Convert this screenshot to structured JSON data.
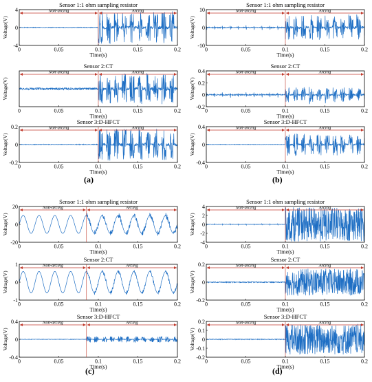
{
  "figure": {
    "panels": [
      {
        "label": "(a)",
        "subplots": [
          {
            "title": "Sensor 1:1 ohm sampling resistor",
            "ylabel": "Voltage(V)",
            "xlabel": "Time(s)",
            "xticks": [
              "0",
              "0.05",
              "0.1",
              "0.15",
              "0.2"
            ],
            "yticks": [
              "4",
              "0",
              "-4"
            ],
            "ylim": [
              -4,
              4
            ],
            "region_labels": [
              "Non-arcing",
              "Arcing"
            ]
          },
          {
            "title": "Sensor 2:CT",
            "ylabel": "Voltage(V)",
            "xlabel": "Time(s)",
            "xticks": [
              "0",
              "0.05",
              "0.1",
              "0.15",
              "0.2"
            ],
            "yticks": [],
            "ylim": [
              -1,
              1
            ],
            "region_labels": [
              "Non-arcing",
              "Arcing"
            ]
          },
          {
            "title": "Sensor 3:D-HFCT",
            "ylabel": "Voltage(V)",
            "xlabel": "Time(s)",
            "xticks": [
              "0",
              "0.05",
              "0.1",
              "0.15",
              "0.2"
            ],
            "yticks": [
              "0.2",
              "0",
              "-0.2"
            ],
            "ylim": [
              -0.2,
              0.2
            ],
            "region_labels": [
              "Non-arcing",
              "Arcing"
            ]
          }
        ]
      },
      {
        "label": "(b)",
        "subplots": [
          {
            "title": "Sensor 1:1 ohm sampling resistor",
            "ylabel": "Voltage(V)",
            "xlabel": "Time(s)",
            "xticks": [
              "0",
              "0.05",
              "0.1",
              "0.15",
              "0.2"
            ],
            "yticks": [
              "10",
              "0",
              "-10"
            ],
            "ylim": [
              -10,
              10
            ],
            "region_labels": [
              "Non-arcing",
              "Arcing"
            ]
          },
          {
            "title": "Sensor 2:CT",
            "ylabel": "Voltage(V)",
            "xlabel": "Time(s)",
            "xticks": [
              "0",
              "0.05",
              "0.1",
              "0.15",
              "0.2"
            ],
            "yticks": [
              "0.4",
              "0.2",
              "0",
              "-0.2"
            ],
            "ylim": [
              -0.2,
              0.4
            ],
            "region_labels": [
              "Non-arcing",
              "Arcing"
            ]
          },
          {
            "title": "Sensor 3:D-HFCT",
            "ylabel": "Voltage(V)",
            "xlabel": "Time(s)",
            "xticks": [
              "0",
              "0.05",
              "0.1",
              "0.15",
              "0.2"
            ],
            "yticks": [
              "0.4",
              "0",
              "-0.4"
            ],
            "ylim": [
              -0.4,
              0.4
            ],
            "region_labels": [
              "Non-arcing",
              "Arcing"
            ]
          }
        ]
      },
      {
        "label": "(c)",
        "subplots": [
          {
            "title": "Sensor 1:1 ohm sampling resistor",
            "ylabel": "Voltage(V)",
            "xlabel": "Time(s)",
            "xticks": [
              "0",
              "0.05",
              "0.1",
              "0.15",
              "0.2"
            ],
            "yticks": [
              "20",
              "0",
              "-20"
            ],
            "ylim": [
              -20,
              20
            ],
            "region_labels": [
              "Non-arcing",
              "Arcing"
            ]
          },
          {
            "title": "Sensor 2:CT",
            "ylabel": "Voltage(V)",
            "xlabel": "Time(s)",
            "xticks": [
              "0",
              "0.05",
              "0.1",
              "0.15",
              "0.2"
            ],
            "yticks": [
              "1",
              "0",
              "-1"
            ],
            "ylim": [
              -1,
              1
            ],
            "region_labels": [
              "Non-arcing",
              "Arcing"
            ]
          },
          {
            "title": "Sensor 3:D-HFCT",
            "ylabel": "Voltage(V)",
            "xlabel": "Time(s)",
            "xticks": [
              "0",
              "0.05",
              "0.1",
              "0.15",
              "0.2"
            ],
            "yticks": [
              "0.4",
              "0",
              "-0.4"
            ],
            "ylim": [
              -0.4,
              0.4
            ],
            "region_labels": [
              "Non-arcing",
              "Arcing"
            ]
          }
        ]
      },
      {
        "label": "(d)",
        "subplots": [
          {
            "title": "Sensor 1:1 ohm sampling resistor",
            "ylabel": "Voltage(V)",
            "xlabel": "Time(s)",
            "xticks": [
              "0",
              "0.05",
              "0.1",
              "0.15",
              "0.2"
            ],
            "yticks": [
              "4",
              "2",
              "0",
              "-2",
              "-4"
            ],
            "ylim": [
              -4,
              4
            ],
            "region_labels": [
              "Non-arcing",
              "Arcing"
            ]
          },
          {
            "title": "Sensor 2:CT",
            "ylabel": "Voltage(V)",
            "xlabel": "Time(s)",
            "xticks": [
              "0",
              "0.05",
              "0.1",
              "0.15",
              "0.2"
            ],
            "yticks": [
              "0.2",
              "0",
              "-0.2"
            ],
            "ylim": [
              -0.2,
              0.2
            ],
            "region_labels": [
              "Non-arcing",
              "Arcing"
            ]
          },
          {
            "title": "Sensor 3:D-HFCT",
            "ylabel": "Voltage(V)",
            "xlabel": "Time(s)",
            "xticks": [
              "0",
              "0.05",
              "0.1",
              "0.15",
              "0.2"
            ],
            "yticks": [
              "0.2",
              "0.1",
              "0",
              "-0.1",
              "-0.2"
            ],
            "ylim": [
              -0.2,
              0.2
            ],
            "region_labels": [
              "Non-arcing",
              "Arcing"
            ]
          }
        ]
      }
    ]
  },
  "chart_data": [
    {
      "type": "line",
      "panel": "(a)",
      "title": "Sensor 1:1 ohm sampling resistor",
      "xlabel": "Time(s)",
      "ylabel": "Voltage(V)",
      "xlim": [
        0,
        0.2
      ],
      "ylim": [
        -4,
        4
      ],
      "grid": false,
      "series": [
        {
          "signal": "noise",
          "amp": 0.08,
          "arc_start": 0.1,
          "arc_period": 0.01,
          "arc_amp": 3.6,
          "color": "#1f6fc4"
        }
      ],
      "annotations": [
        {
          "text": "Non-arcing",
          "x_range": [
            0,
            0.1
          ]
        },
        {
          "text": "Arcing",
          "x_range": [
            0.1,
            0.2
          ]
        }
      ]
    },
    {
      "type": "line",
      "panel": "(a)",
      "title": "Sensor 2:CT",
      "xlabel": "Time(s)",
      "ylabel": "Voltage(V)",
      "xlim": [
        0,
        0.2
      ],
      "ylim": [
        -1,
        1
      ],
      "grid": false,
      "series": [
        {
          "signal": "noise",
          "amp": 0.06,
          "arc_start": 0.1,
          "arc_period": 0.01,
          "arc_amp": 0.85,
          "color": "#1f6fc4"
        }
      ],
      "annotations": [
        {
          "text": "Non-arcing",
          "x_range": [
            0,
            0.1
          ]
        },
        {
          "text": "Arcing",
          "x_range": [
            0.1,
            0.2
          ]
        }
      ]
    },
    {
      "type": "line",
      "panel": "(a)",
      "title": "Sensor 3:D-HFCT",
      "xlabel": "Time(s)",
      "ylabel": "Voltage(V)",
      "xlim": [
        0,
        0.2
      ],
      "ylim": [
        -0.2,
        0.2
      ],
      "grid": false,
      "series": [
        {
          "signal": "noise",
          "amp": 0.004,
          "arc_start": 0.1,
          "arc_period": 0.01,
          "arc_amp": 0.18,
          "color": "#1f6fc4"
        }
      ],
      "annotations": [
        {
          "text": "Non-arcing",
          "x_range": [
            0,
            0.1
          ]
        },
        {
          "text": "Arcing",
          "x_range": [
            0.1,
            0.2
          ]
        }
      ]
    },
    {
      "type": "line",
      "panel": "(b)",
      "title": "Sensor 1:1 ohm sampling resistor",
      "xlabel": "Time(s)",
      "ylabel": "Voltage(V)",
      "xlim": [
        0,
        0.2
      ],
      "ylim": [
        -10,
        10
      ],
      "grid": false,
      "series": [
        {
          "signal": "pulses",
          "amp": 1.2,
          "arc_start": 0.1,
          "arc_period": 0.01,
          "arc_amp": 7,
          "color": "#1f6fc4"
        }
      ],
      "annotations": [
        {
          "text": "Non-arcing",
          "x_range": [
            0,
            0.1
          ]
        },
        {
          "text": "Arcing",
          "x_range": [
            0.1,
            0.2
          ]
        }
      ]
    },
    {
      "type": "line",
      "panel": "(b)",
      "title": "Sensor 2:CT",
      "xlabel": "Time(s)",
      "ylabel": "Voltage(V)",
      "xlim": [
        0,
        0.2
      ],
      "ylim": [
        -0.2,
        0.4
      ],
      "grid": false,
      "series": [
        {
          "signal": "pulses",
          "amp": 0.04,
          "arc_start": 0.1,
          "arc_period": 0.01,
          "arc_amp": 0.12,
          "color": "#1f6fc4"
        }
      ],
      "annotations": [
        {
          "text": "Non-arcing",
          "x_range": [
            0,
            0.1
          ]
        },
        {
          "text": "Arcing",
          "x_range": [
            0.1,
            0.2
          ]
        }
      ]
    },
    {
      "type": "line",
      "panel": "(b)",
      "title": "Sensor 3:D-HFCT",
      "xlabel": "Time(s)",
      "ylabel": "Voltage(V)",
      "xlim": [
        0,
        0.2
      ],
      "ylim": [
        -0.4,
        0.4
      ],
      "grid": false,
      "series": [
        {
          "signal": "noise",
          "amp": 0.006,
          "arc_start": 0.1,
          "arc_period": 0.01,
          "arc_amp": 0.25,
          "color": "#1f6fc4"
        }
      ],
      "annotations": [
        {
          "text": "Non-arcing",
          "x_range": [
            0,
            0.1
          ]
        },
        {
          "text": "Arcing",
          "x_range": [
            0.1,
            0.2
          ]
        }
      ]
    },
    {
      "type": "line",
      "panel": "(c)",
      "title": "Sensor 1:1 ohm sampling resistor",
      "xlabel": "Time(s)",
      "ylabel": "Voltage(V)",
      "xlim": [
        0,
        0.2
      ],
      "ylim": [
        -20,
        20
      ],
      "grid": false,
      "series": [
        {
          "signal": "sine",
          "amp": 10,
          "freq": 50,
          "arc_start": 0.085,
          "arc_period": 0.01,
          "arc_amp": 3,
          "color": "#1f6fc4"
        }
      ],
      "annotations": [
        {
          "text": "Non-arcing",
          "x_range": [
            0,
            0.085
          ]
        },
        {
          "text": "Arcing",
          "x_range": [
            0.085,
            0.2
          ]
        }
      ]
    },
    {
      "type": "line",
      "panel": "(c)",
      "title": "Sensor 2:CT",
      "xlabel": "Time(s)",
      "ylabel": "Voltage(V)",
      "xlim": [
        0,
        0.2
      ],
      "ylim": [
        -1,
        1
      ],
      "grid": false,
      "series": [
        {
          "signal": "sine",
          "amp": 0.6,
          "freq": 50,
          "arc_start": 0.085,
          "arc_period": 0.01,
          "arc_amp": 0.1,
          "color": "#1f6fc4"
        }
      ],
      "annotations": [
        {
          "text": "Non-arcing",
          "x_range": [
            0,
            0.085
          ]
        },
        {
          "text": "Arcing",
          "x_range": [
            0.085,
            0.2
          ]
        }
      ]
    },
    {
      "type": "line",
      "panel": "(c)",
      "title": "Sensor 3:D-HFCT",
      "xlabel": "Time(s)",
      "ylabel": "Voltage(V)",
      "xlim": [
        0,
        0.2
      ],
      "ylim": [
        -0.4,
        0.4
      ],
      "grid": false,
      "series": [
        {
          "signal": "noise",
          "amp": 0.005,
          "arc_start": 0.085,
          "arc_period": 0.01,
          "arc_amp": 0.07,
          "color": "#1f6fc4"
        }
      ],
      "annotations": [
        {
          "text": "Non-arcing",
          "x_range": [
            0,
            0.085
          ]
        },
        {
          "text": "Arcing",
          "x_range": [
            0.085,
            0.2
          ]
        }
      ]
    },
    {
      "type": "line",
      "panel": "(d)",
      "title": "Sensor 1:1 ohm sampling resistor",
      "xlabel": "Time(s)",
      "ylabel": "Voltage(V)",
      "xlim": [
        0,
        0.2
      ],
      "ylim": [
        -4,
        4
      ],
      "grid": false,
      "series": [
        {
          "signal": "pulses",
          "amp": 0.15,
          "arc_start": 0.1,
          "arc_period": 0.001,
          "arc_amp": 3.8,
          "color": "#1f6fc4"
        }
      ],
      "annotations": [
        {
          "text": "Non-arcing",
          "x_range": [
            0,
            0.1
          ]
        },
        {
          "text": "Arcing",
          "x_range": [
            0.1,
            0.2
          ]
        }
      ]
    },
    {
      "type": "line",
      "panel": "(d)",
      "title": "Sensor 2:CT",
      "xlabel": "Time(s)",
      "ylabel": "Voltage(V)",
      "xlim": [
        0,
        0.2
      ],
      "ylim": [
        -0.2,
        0.2
      ],
      "grid": false,
      "series": [
        {
          "signal": "noise",
          "amp": 0.005,
          "arc_start": 0.1,
          "arc_period": 0.001,
          "arc_amp": 0.15,
          "color": "#1f6fc4"
        }
      ],
      "annotations": [
        {
          "text": "Non-arcing",
          "x_range": [
            0,
            0.1
          ]
        },
        {
          "text": "Arcing",
          "x_range": [
            0.1,
            0.2
          ]
        }
      ]
    },
    {
      "type": "line",
      "panel": "(d)",
      "title": "Sensor 3:D-HFCT",
      "xlabel": "Time(s)",
      "ylabel": "Voltage(V)",
      "xlim": [
        0,
        0.2
      ],
      "ylim": [
        -0.2,
        0.2
      ],
      "grid": false,
      "series": [
        {
          "signal": "noise",
          "amp": 0.004,
          "arc_start": 0.1,
          "arc_period": 0.001,
          "arc_amp": 0.17,
          "color": "#1f6fc4"
        }
      ],
      "annotations": [
        {
          "text": "Non-arcing",
          "x_range": [
            0,
            0.1
          ]
        },
        {
          "text": "Arcing",
          "x_range": [
            0.1,
            0.2
          ]
        }
      ]
    }
  ]
}
